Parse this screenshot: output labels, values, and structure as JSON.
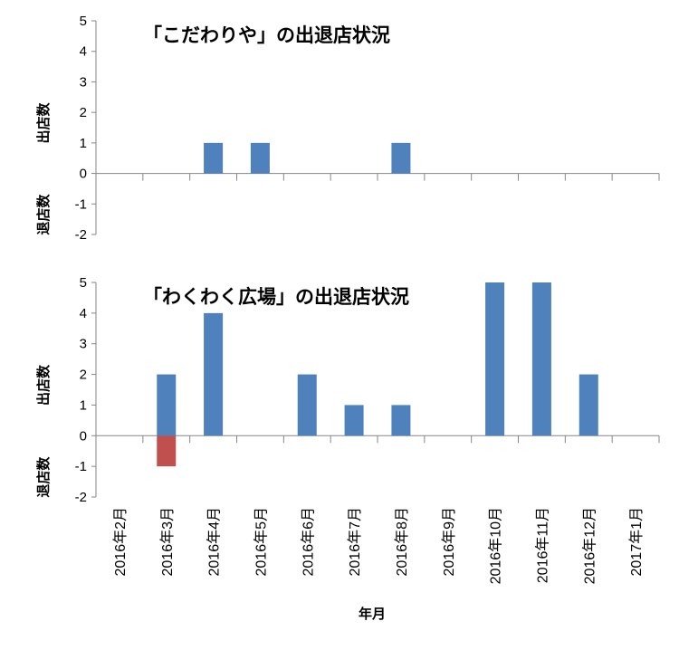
{
  "colors": {
    "positive": "#4f81bd",
    "negative": "#c0504d",
    "axis": "#868686"
  },
  "xlabel": "年月",
  "categories": [
    "2016年2月",
    "2016年3月",
    "2016年4月",
    "2016年5月",
    "2016年6月",
    "2016年7月",
    "2016年8月",
    "2016年9月",
    "2016年10月",
    "2016年11月",
    "2016年12月",
    "2017年1月"
  ],
  "chart_data": [
    {
      "type": "bar",
      "title": "「こだわりや」の出退店状況",
      "ylabel_positive": "出店数",
      "ylabel_negative": "退店数",
      "ylim": [
        -2,
        5
      ],
      "yticks": [
        "5",
        "4",
        "3",
        "2",
        "1",
        "0",
        "-1",
        "-2"
      ],
      "categories": [
        "2016年2月",
        "2016年3月",
        "2016年4月",
        "2016年5月",
        "2016年6月",
        "2016年7月",
        "2016年8月",
        "2016年9月",
        "2016年10月",
        "2016年11月",
        "2016年12月",
        "2017年1月"
      ],
      "series": [
        {
          "values": [
            0,
            0,
            1,
            1,
            0,
            0,
            1,
            0,
            0,
            0,
            0,
            0
          ]
        },
        {
          "values": [
            0,
            0,
            0,
            0,
            0,
            0,
            0,
            0,
            0,
            0,
            0,
            0
          ]
        }
      ]
    },
    {
      "type": "bar",
      "title": "「わくわく広場」の出退店状況",
      "ylabel_positive": "出店数",
      "ylabel_negative": "退店数",
      "ylim": [
        -2,
        5
      ],
      "yticks": [
        "5",
        "4",
        "3",
        "2",
        "1",
        "0",
        "-1",
        "-2"
      ],
      "categories": [
        "2016年2月",
        "2016年3月",
        "2016年4月",
        "2016年5月",
        "2016年6月",
        "2016年7月",
        "2016年8月",
        "2016年9月",
        "2016年10月",
        "2016年11月",
        "2016年12月",
        "2017年1月"
      ],
      "series": [
        {
          "values": [
            0,
            2,
            4,
            0,
            2,
            1,
            1,
            0,
            5,
            5,
            2,
            0
          ]
        },
        {
          "values": [
            0,
            -1,
            0,
            0,
            0,
            0,
            0,
            0,
            0,
            0,
            0,
            0
          ]
        }
      ]
    }
  ]
}
